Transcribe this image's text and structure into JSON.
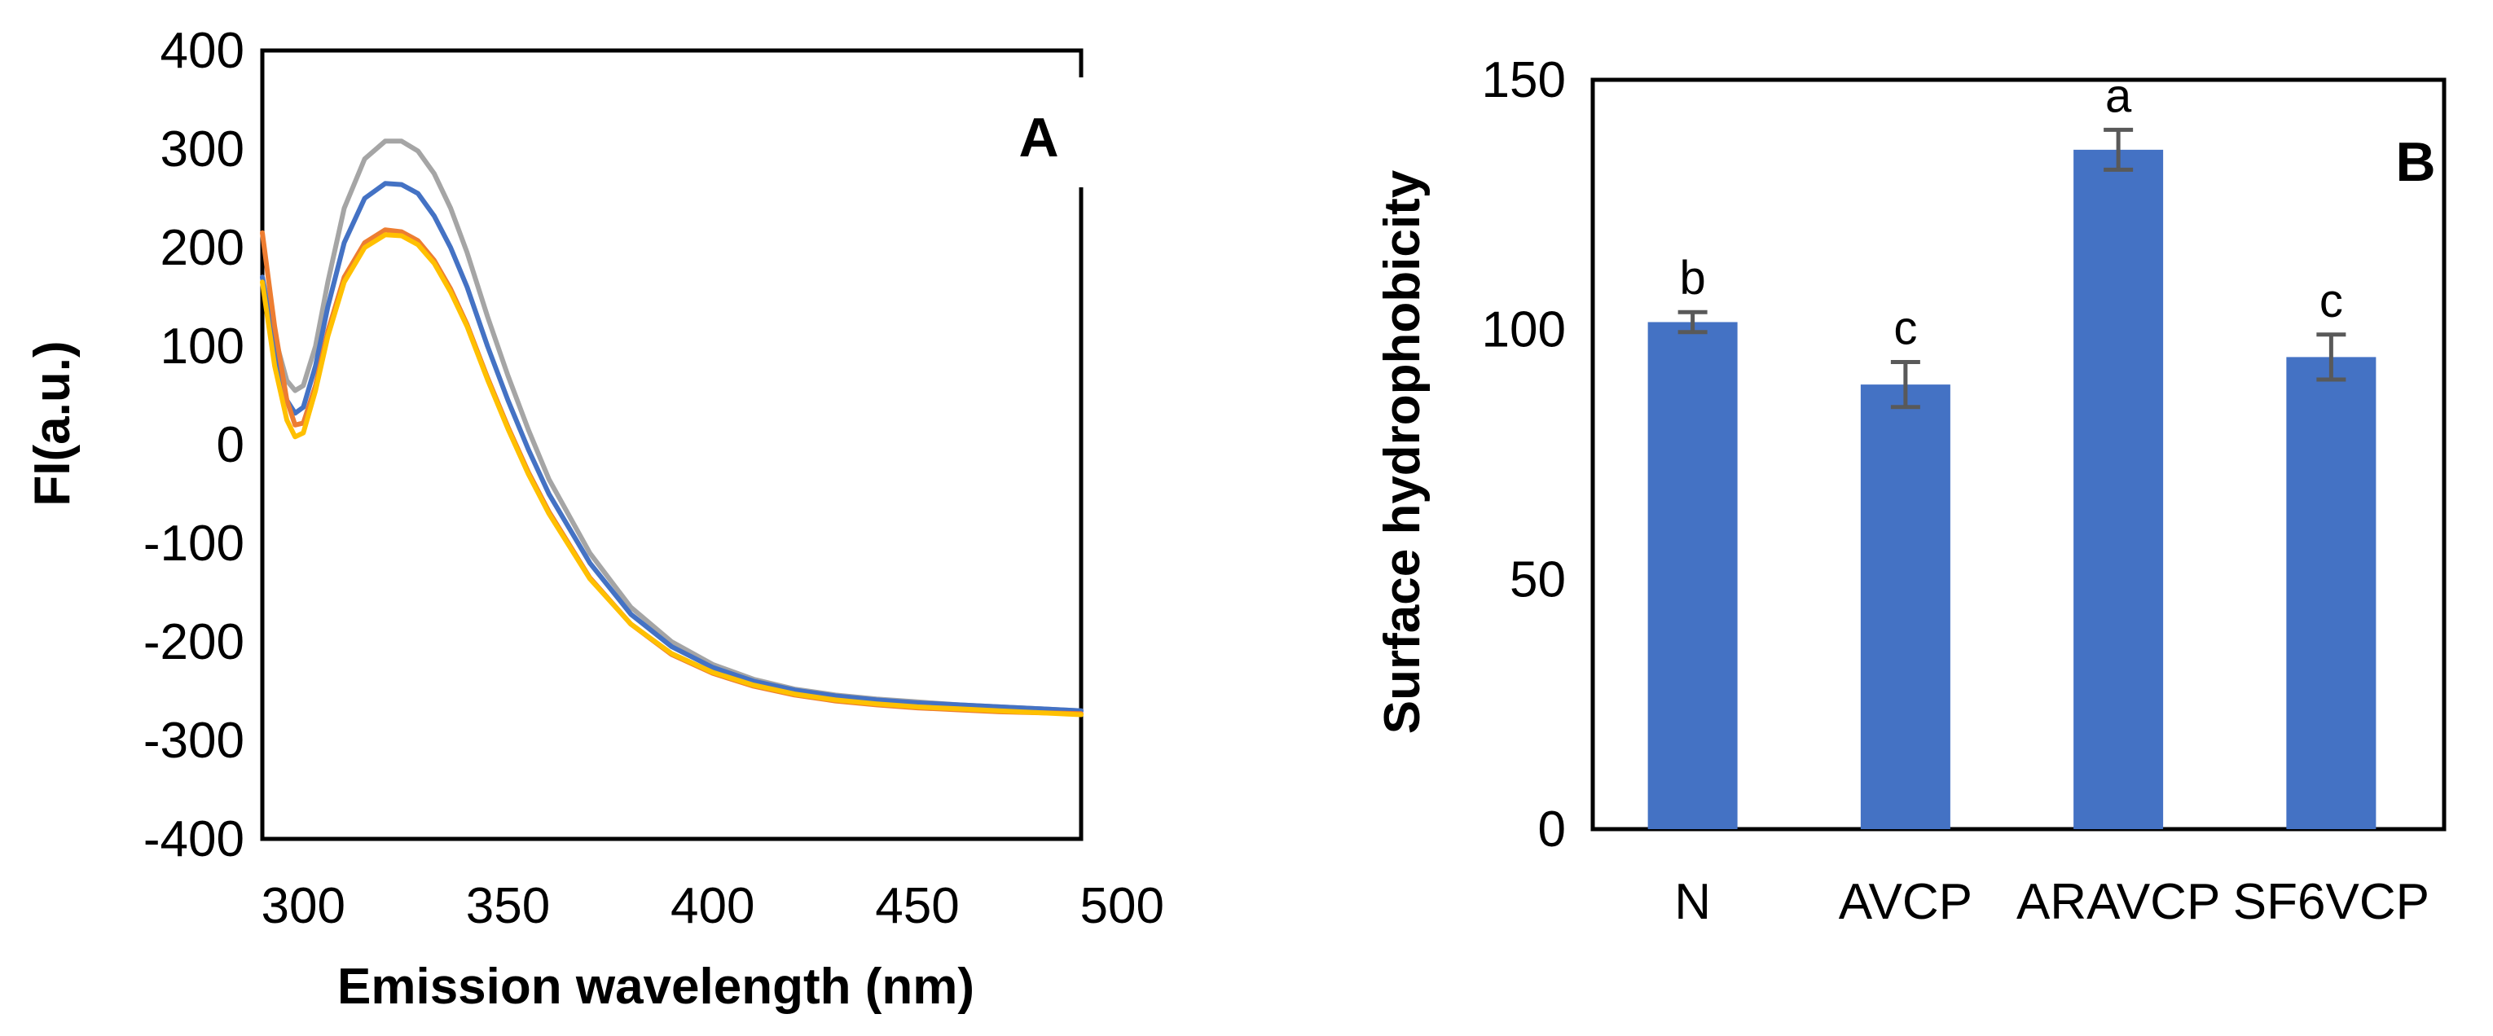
{
  "chart_data": [
    {
      "type": "line",
      "panel_label": "A",
      "xlabel": "Emission wavelength (nm)",
      "ylabel": "FI(a.u.)",
      "xlim": [
        290,
        490
      ],
      "ylim": [
        -400,
        400
      ],
      "xticks": [
        300,
        350,
        400,
        450,
        500
      ],
      "yticks": [
        400,
        300,
        200,
        100,
        0,
        -100,
        -200,
        -300,
        -400
      ],
      "legend": "none",
      "grid": false,
      "series": [
        {
          "name": "gray",
          "color": "#a5a5a5",
          "x": [
            290,
            293,
            296,
            298,
            300,
            303,
            306,
            310,
            315,
            320,
            324,
            328,
            332,
            336,
            340,
            345,
            350,
            355,
            360,
            370,
            380,
            390,
            400,
            410,
            420,
            430,
            440,
            450,
            460,
            470,
            480,
            490
          ],
          "y": [
            170,
            110,
            65,
            55,
            60,
            100,
            165,
            240,
            290,
            308,
            308,
            298,
            275,
            240,
            195,
            130,
            70,
            15,
            -35,
            -110,
            -165,
            -200,
            -223,
            -238,
            -248,
            -254,
            -258,
            -261,
            -264,
            -266,
            -268,
            -270
          ]
        },
        {
          "name": "blue",
          "color": "#4472c4",
          "x": [
            290,
            293,
            296,
            298,
            300,
            303,
            306,
            310,
            315,
            320,
            324,
            328,
            332,
            336,
            340,
            345,
            350,
            355,
            360,
            370,
            380,
            390,
            400,
            410,
            420,
            430,
            440,
            450,
            460,
            470,
            480,
            490
          ],
          "y": [
            170,
            95,
            45,
            32,
            38,
            80,
            140,
            205,
            250,
            265,
            264,
            255,
            232,
            200,
            160,
            100,
            45,
            -5,
            -50,
            -120,
            -172,
            -205,
            -226,
            -240,
            -249,
            -255,
            -259,
            -262,
            -264,
            -266,
            -268,
            -270
          ]
        },
        {
          "name": "orange",
          "color": "#ed7d31",
          "x": [
            290,
            293,
            296,
            298,
            300,
            303,
            306,
            310,
            315,
            320,
            324,
            328,
            332,
            336,
            340,
            345,
            350,
            355,
            360,
            370,
            380,
            390,
            400,
            410,
            420,
            430,
            440,
            450,
            460,
            470,
            480,
            490
          ],
          "y": [
            215,
            120,
            45,
            20,
            22,
            60,
            115,
            170,
            205,
            218,
            216,
            207,
            187,
            158,
            122,
            68,
            18,
            -28,
            -68,
            -135,
            -182,
            -213,
            -232,
            -245,
            -254,
            -260,
            -264,
            -267,
            -269,
            -271,
            -272,
            -273
          ]
        },
        {
          "name": "yellow",
          "color": "#ffc000",
          "x": [
            290,
            293,
            296,
            298,
            300,
            303,
            306,
            310,
            315,
            320,
            324,
            328,
            332,
            336,
            340,
            345,
            350,
            355,
            360,
            370,
            380,
            390,
            400,
            410,
            420,
            430,
            440,
            450,
            460,
            470,
            480,
            490
          ],
          "y": [
            165,
            80,
            25,
            8,
            12,
            55,
            110,
            165,
            200,
            213,
            212,
            203,
            184,
            155,
            120,
            66,
            16,
            -30,
            -70,
            -136,
            -182,
            -212,
            -231,
            -244,
            -253,
            -259,
            -263,
            -266,
            -268,
            -270,
            -272,
            -274
          ]
        }
      ]
    },
    {
      "type": "bar",
      "panel_label": "B",
      "xlabel": "",
      "ylabel": "Surface hydrophobicity",
      "ylim": [
        0,
        150
      ],
      "yticks": [
        150,
        100,
        50,
        0
      ],
      "categories": [
        "N",
        "AVCP",
        "ARAVCP",
        "SF6VCP"
      ],
      "values": [
        101.5,
        89,
        136,
        94.5
      ],
      "errors": [
        2,
        4.5,
        4,
        4.5
      ],
      "significance": [
        "b",
        "c",
        "a",
        "c"
      ],
      "bar_color": "#4472c4",
      "error_color": "#595959",
      "legend": "none",
      "grid": false
    }
  ]
}
